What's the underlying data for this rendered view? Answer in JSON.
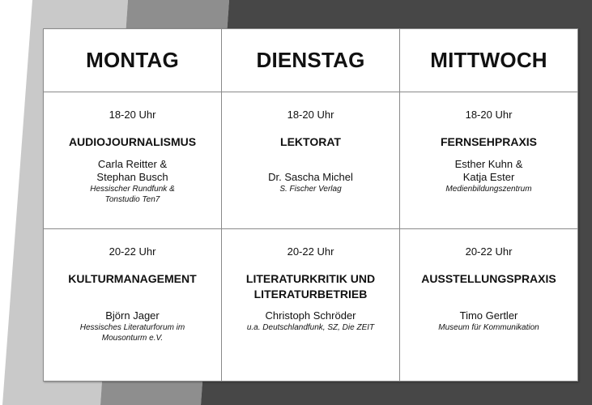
{
  "colors": {
    "light_gray": "#c9c9c9",
    "mid_gray": "#8e8e8e",
    "dark_gray": "#474747"
  },
  "days": [
    "MONTAG",
    "DIENSTAG",
    "MITTWOCH"
  ],
  "rows": [
    [
      {
        "time": "18-20 Uhr",
        "course": "AUDIOJOURNALISMUS",
        "person": "Carla Reitter &\nStephan Busch",
        "institution": "Hessischer Rundfunk &\nTonstudio Ten7"
      },
      {
        "time": "18-20 Uhr",
        "course": "LEKTORAT",
        "person": "Dr. Sascha Michel",
        "institution": "S. Fischer Verlag"
      },
      {
        "time": "18-20 Uhr",
        "course": "FERNSEHPRAXIS",
        "person": "Esther Kuhn &\nKatja Ester",
        "institution": "Medienbildungszentrum"
      }
    ],
    [
      {
        "time": "20-22 Uhr",
        "course": "KULTURMANAGEMENT",
        "person": "Björn Jager",
        "institution": "Hessisches Literaturforum im\nMousonturm e.V."
      },
      {
        "time": "20-22 Uhr",
        "course": "LITERATURKRITIK UND LITERATURBETRIEB",
        "person": "Christoph Schröder",
        "institution": "u.a. Deutschlandfunk, SZ, Die ZEIT"
      },
      {
        "time": "20-22 Uhr",
        "course": "AUSSTELLUNGSPRAXIS",
        "person": "Timo Gertler",
        "institution": "Museum für Kommunikation"
      }
    ]
  ]
}
